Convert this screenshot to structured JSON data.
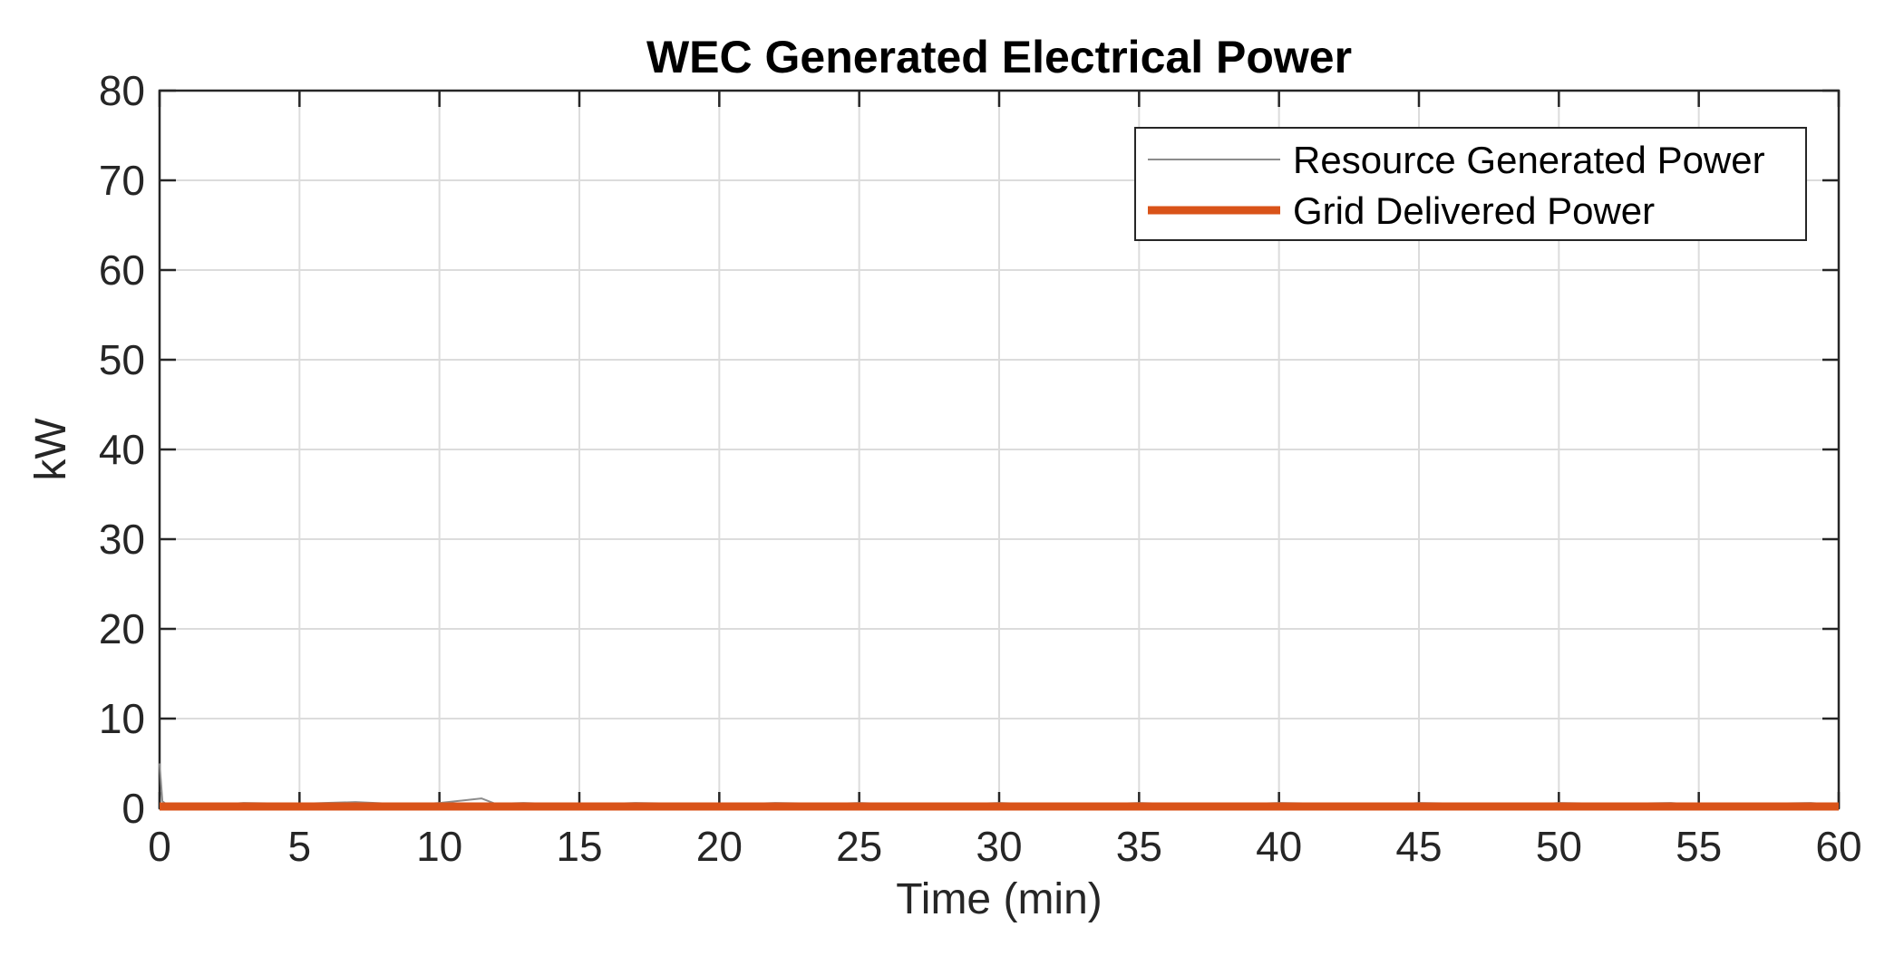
{
  "chart_data": {
    "type": "line",
    "title": "WEC Generated Electrical Power",
    "xlabel": "Time (min)",
    "ylabel": "kW",
    "xlim": [
      0,
      60
    ],
    "ylim": [
      0,
      80
    ],
    "xticks": [
      0,
      5,
      10,
      15,
      20,
      25,
      30,
      35,
      40,
      45,
      50,
      55,
      60
    ],
    "yticks": [
      0,
      10,
      20,
      30,
      40,
      50,
      60,
      70,
      80
    ],
    "xtick_labels": [
      "0",
      "5",
      "10",
      "15",
      "20",
      "25",
      "30",
      "35",
      "40",
      "45",
      "50",
      "55",
      "60"
    ],
    "ytick_labels": [
      "0",
      "10",
      "20",
      "30",
      "40",
      "50",
      "60",
      "70",
      "80"
    ],
    "grid": true,
    "legend_position": "top-right",
    "colors": {
      "resource": "#8c8c8c",
      "grid_delivered": "#d95319",
      "gridline": "#dcdcdc",
      "axis": "#262626"
    },
    "series": [
      {
        "name": "Resource Generated Power",
        "x": [
          0,
          0.1,
          0.3,
          1,
          2,
          3,
          5,
          7,
          9,
          10,
          11.5,
          12,
          13,
          15,
          17,
          19,
          20,
          22,
          24,
          25,
          27,
          29,
          30,
          32,
          34,
          35,
          37,
          39,
          40,
          42,
          44,
          45,
          47,
          49,
          50,
          52,
          54,
          55,
          57,
          59,
          60
        ],
        "y": [
          5.0,
          0.8,
          0.3,
          0.5,
          0.4,
          0.6,
          0.5,
          0.7,
          0.4,
          0.6,
          1.1,
          0.5,
          0.6,
          0.4,
          0.6,
          0.5,
          0.4,
          0.6,
          0.5,
          0.6,
          0.4,
          0.5,
          0.6,
          0.4,
          0.5,
          0.6,
          0.4,
          0.5,
          0.6,
          0.5,
          0.4,
          0.6,
          0.5,
          0.4,
          0.6,
          0.5,
          0.6,
          0.4,
          0.5,
          0.6,
          0.4
        ]
      },
      {
        "name": "Grid Delivered Power",
        "x": [
          0,
          5,
          10,
          15,
          20,
          25,
          30,
          35,
          40,
          45,
          50,
          55,
          60
        ],
        "y": [
          0.2,
          0.2,
          0.2,
          0.2,
          0.2,
          0.2,
          0.2,
          0.2,
          0.2,
          0.2,
          0.2,
          0.2,
          0.2
        ]
      }
    ]
  }
}
